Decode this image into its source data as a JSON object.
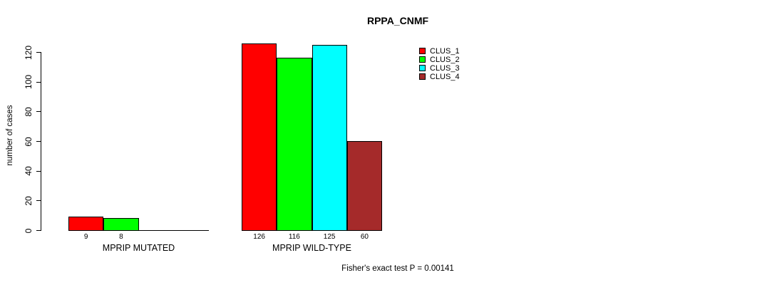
{
  "page": {
    "background_color": "#FFFFFF",
    "text_color": "#000000"
  },
  "chart_data": {
    "type": "bar",
    "title": "RPPA_CNMF",
    "xlabel": "",
    "ylabel": "number of cases",
    "yticks": [
      0,
      20,
      40,
      60,
      80,
      100,
      120
    ],
    "ylim": [
      0,
      126
    ],
    "grid": false,
    "legend_position": "top-right",
    "axis_color": "#000000",
    "bar_border_color": "#000000",
    "series": [
      {
        "name": "CLUS_1",
        "color": "#FF0000"
      },
      {
        "name": "CLUS_2",
        "color": "#00FF00"
      },
      {
        "name": "CLUS_3",
        "color": "#00FFFF"
      },
      {
        "name": "CLUS_4",
        "color": "#A52A2A"
      }
    ],
    "categories": [
      "MPRIP MUTATED",
      "MPRIP WILD-TYPE"
    ],
    "groups": [
      {
        "label": "MPRIP MUTATED",
        "values": [
          9,
          8,
          0,
          0
        ],
        "bar_labels": [
          "9",
          "8",
          "",
          ""
        ]
      },
      {
        "label": "MPRIP WILD-TYPE",
        "values": [
          126,
          116,
          125,
          60
        ],
        "bar_labels": [
          "126",
          "116",
          "125",
          "60"
        ]
      }
    ],
    "annotation": "Fisher's exact test P = 0.00141"
  }
}
